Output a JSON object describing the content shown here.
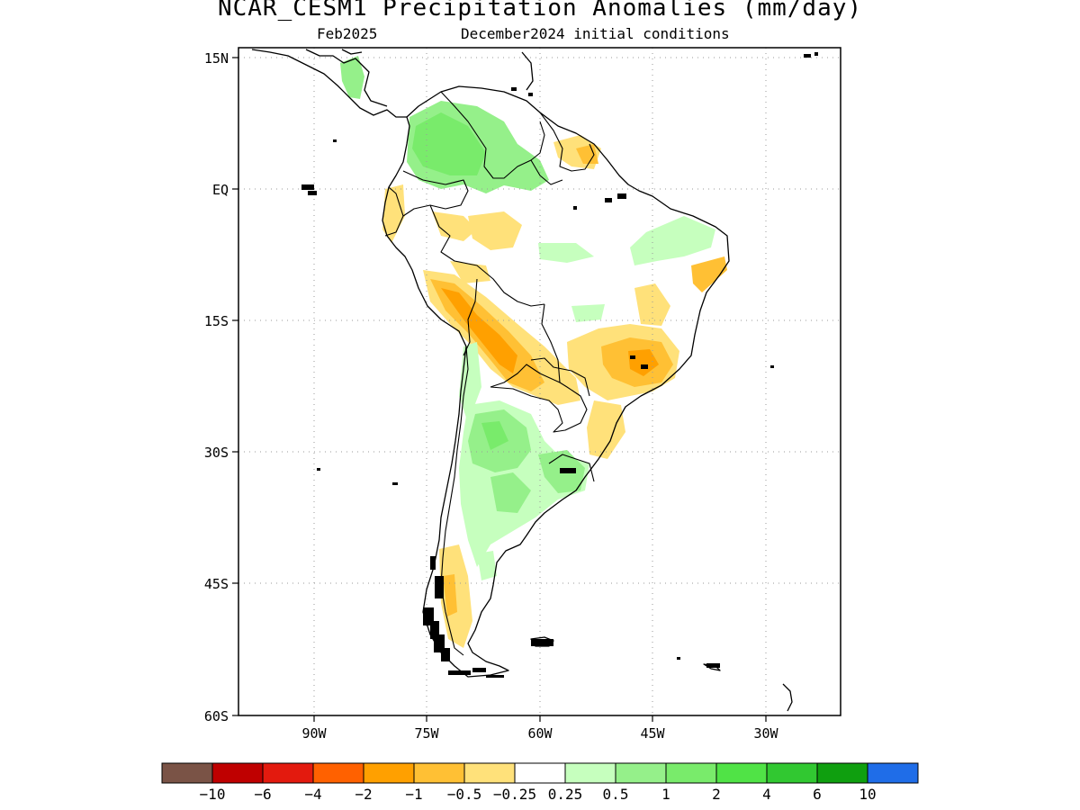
{
  "title": "NCAR_CESM1 Precipitation Anomalies (mm/day)",
  "subtitle_left": "Feb2025",
  "subtitle_right": "December2024 initial conditions",
  "map": {
    "lat_labels": [
      "15N",
      "EQ",
      "15S",
      "30S",
      "45S",
      "60S"
    ],
    "lon_labels": [
      "90W",
      "75W",
      "60W",
      "45W",
      "30W"
    ]
  },
  "colorbar": {
    "colors": [
      "#7a5346",
      "#bf0000",
      "#e31a0e",
      "#ff6100",
      "#ffa000",
      "#ffc034",
      "#ffe17a",
      "#ffffff",
      "#c6ffbe",
      "#95f08a",
      "#79eb6b",
      "#50e346",
      "#31c831",
      "#0f9f0f",
      "#1f6de8"
    ],
    "labels": [
      "-10",
      "-6",
      "-4",
      "-2",
      "-1",
      "-0.5",
      "-0.25",
      "0.25",
      "0.5",
      "1",
      "2",
      "4",
      "6",
      "10"
    ]
  }
}
